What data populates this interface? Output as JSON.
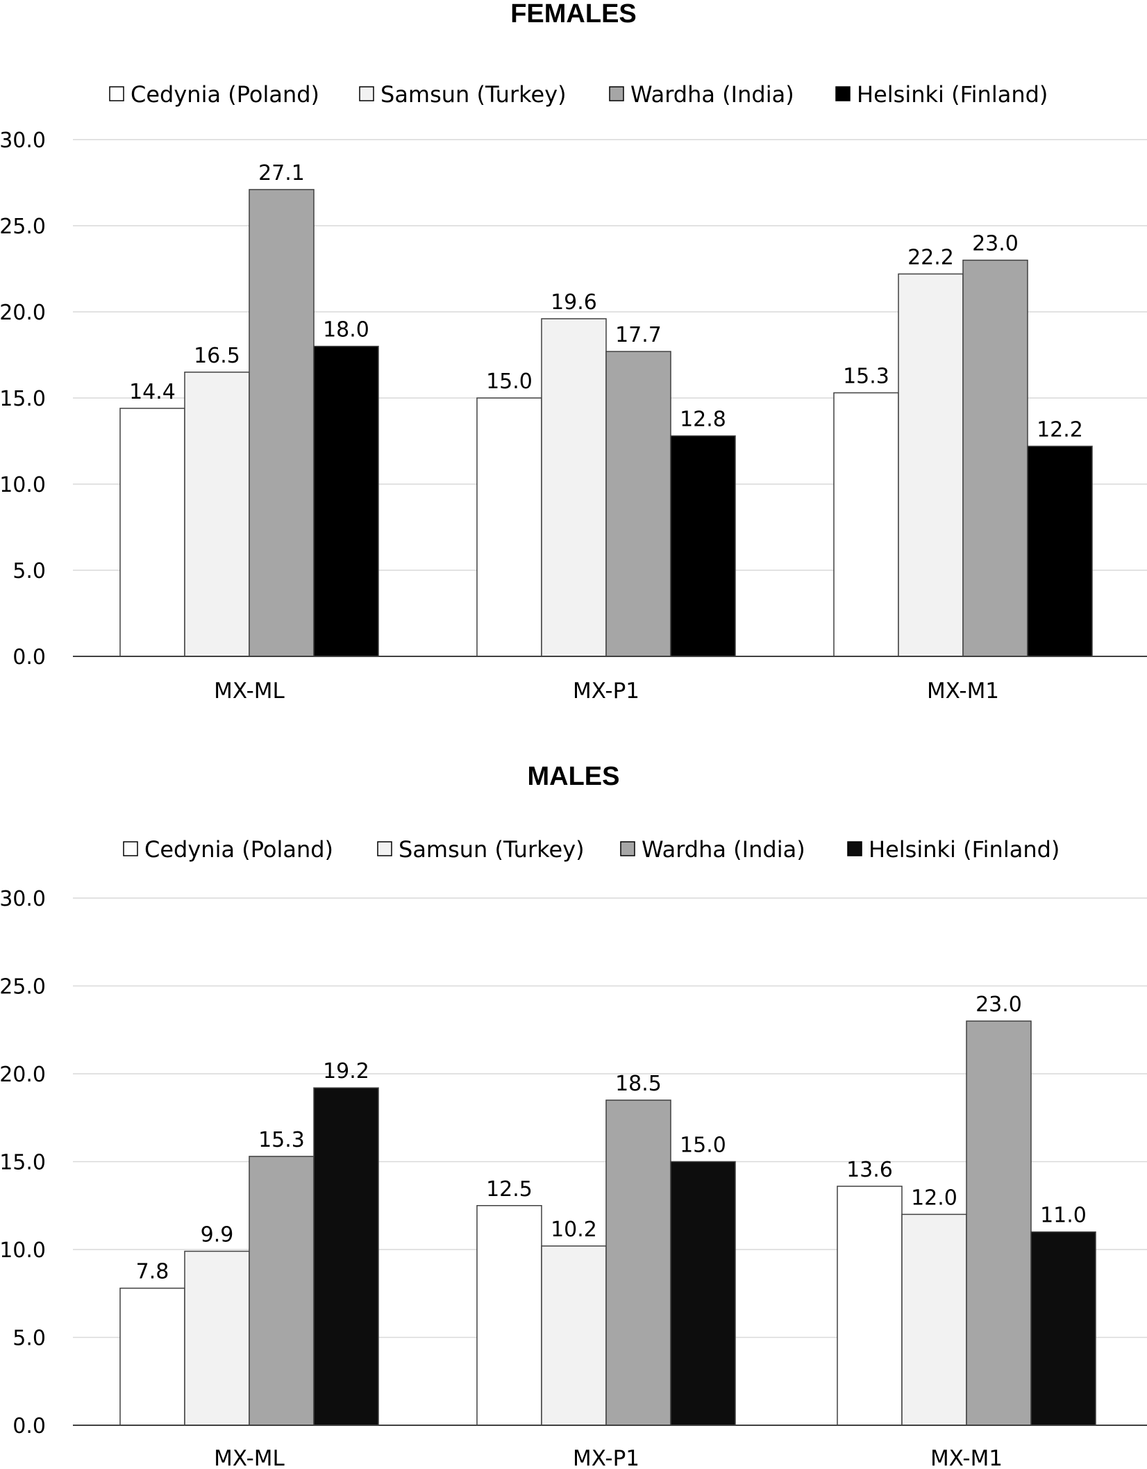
{
  "chart_data": [
    {
      "type": "bar",
      "title": "FEMALES",
      "categories": [
        "MX-ML",
        "MX-P1",
        "MX-M1"
      ],
      "ylim": [
        0,
        30
      ],
      "yticks": [
        "0.0",
        "5.0",
        "10.0",
        "15.0",
        "20.0",
        "25.0",
        "30.0"
      ],
      "grid": true,
      "legend_position": "top",
      "series": [
        {
          "name": "Cedynia (Poland)",
          "color": "#ffffff",
          "label_color": "#595959",
          "values": [
            14.4,
            15.0,
            15.3
          ],
          "labels": [
            "14.4",
            "15.0",
            "15.3"
          ]
        },
        {
          "name": "Samsun (Turkey)",
          "color": "#f2f2f2",
          "label_color": "#000000",
          "values": [
            16.5,
            19.6,
            22.2
          ],
          "labels": [
            "16.5",
            "19.6",
            "22.2"
          ]
        },
        {
          "name": "Wardha (India)",
          "color": "#a6a6a6",
          "label_color": "#000000",
          "values": [
            27.1,
            17.7,
            23.0
          ],
          "labels": [
            "27.1",
            "17.7",
            "23.0"
          ]
        },
        {
          "name": "Helsinki (Finland)",
          "color": "#000000",
          "label_color": "#000000",
          "values": [
            18.0,
            12.8,
            12.2
          ],
          "labels": [
            "18.0",
            "12.8",
            "12.2"
          ]
        }
      ]
    },
    {
      "type": "bar",
      "title": "MALES",
      "categories": [
        "MX-ML",
        "MX-P1",
        "MX-M1"
      ],
      "ylim": [
        0,
        30
      ],
      "yticks": [
        "0.0",
        "5.0",
        "10.0",
        "15.0",
        "20.0",
        "25.0",
        "30.0"
      ],
      "grid": true,
      "legend_position": "top",
      "series": [
        {
          "name": "Cedynia (Poland)",
          "color": "#ffffff",
          "label_color": "#000000",
          "values": [
            7.8,
            12.5,
            13.6
          ],
          "labels": [
            "7.8",
            "12.5",
            "13.6"
          ]
        },
        {
          "name": "Samsun (Turkey)",
          "color": "#f2f2f2",
          "label_color": "#000000",
          "values": [
            9.9,
            10.2,
            12.0
          ],
          "labels": [
            "9.9",
            "10.2",
            "12.0"
          ]
        },
        {
          "name": "Wardha (India)",
          "color": "#a6a6a6",
          "label_color": "#000000",
          "values": [
            15.3,
            18.5,
            23.0
          ],
          "labels": [
            "15.3",
            "18.5",
            "23.0"
          ]
        },
        {
          "name": "Helsinki (Finland)",
          "color": "#0d0d0d",
          "label_color": "#000000",
          "values": [
            19.2,
            15.0,
            11.0
          ],
          "labels": [
            "19.2",
            "15.0",
            "11.0"
          ]
        }
      ]
    }
  ]
}
